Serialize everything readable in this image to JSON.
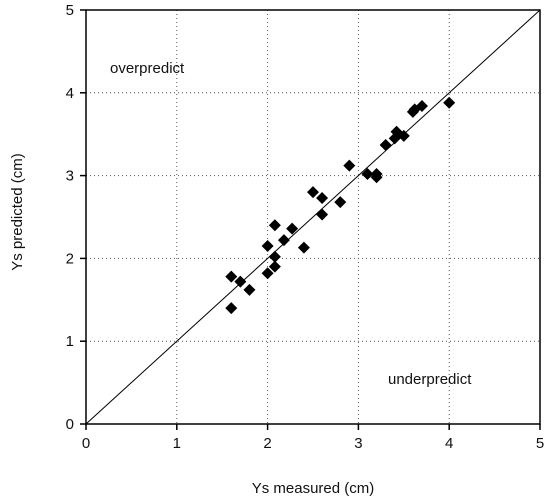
{
  "chart_data": {
    "type": "scatter",
    "title": "",
    "xlabel": "Ys measured (cm)",
    "ylabel": "Ys predicted (cm)",
    "xlim": [
      0,
      5
    ],
    "ylim": [
      0,
      5
    ],
    "xticks": [
      "0",
      "1",
      "2",
      "3",
      "4",
      "5"
    ],
    "yticks": [
      "0",
      "1",
      "2",
      "3",
      "4",
      "5"
    ],
    "grid": "dotted",
    "reference_line": "y = x",
    "annotations": {
      "overpredict": "overpredict",
      "underpredict": "underpredict"
    },
    "marker": "diamond",
    "marker_color": "#000000",
    "points": [
      {
        "x": 1.6,
        "y": 1.4
      },
      {
        "x": 1.6,
        "y": 1.78
      },
      {
        "x": 1.7,
        "y": 1.72
      },
      {
        "x": 1.8,
        "y": 1.62
      },
      {
        "x": 2.0,
        "y": 1.82
      },
      {
        "x": 2.0,
        "y": 2.15
      },
      {
        "x": 2.08,
        "y": 1.9
      },
      {
        "x": 2.08,
        "y": 2.02
      },
      {
        "x": 2.08,
        "y": 2.4
      },
      {
        "x": 2.18,
        "y": 2.22
      },
      {
        "x": 2.27,
        "y": 2.36
      },
      {
        "x": 2.4,
        "y": 2.13
      },
      {
        "x": 2.5,
        "y": 2.8
      },
      {
        "x": 2.6,
        "y": 2.53
      },
      {
        "x": 2.6,
        "y": 2.73
      },
      {
        "x": 2.8,
        "y": 2.68
      },
      {
        "x": 2.9,
        "y": 3.12
      },
      {
        "x": 3.1,
        "y": 3.02
      },
      {
        "x": 3.2,
        "y": 2.98
      },
      {
        "x": 3.2,
        "y": 3.02
      },
      {
        "x": 3.3,
        "y": 3.37
      },
      {
        "x": 3.4,
        "y": 3.45
      },
      {
        "x": 3.42,
        "y": 3.53
      },
      {
        "x": 3.5,
        "y": 3.48
      },
      {
        "x": 3.6,
        "y": 3.77
      },
      {
        "x": 3.62,
        "y": 3.8
      },
      {
        "x": 3.7,
        "y": 3.84
      },
      {
        "x": 4.0,
        "y": 3.88
      }
    ]
  }
}
